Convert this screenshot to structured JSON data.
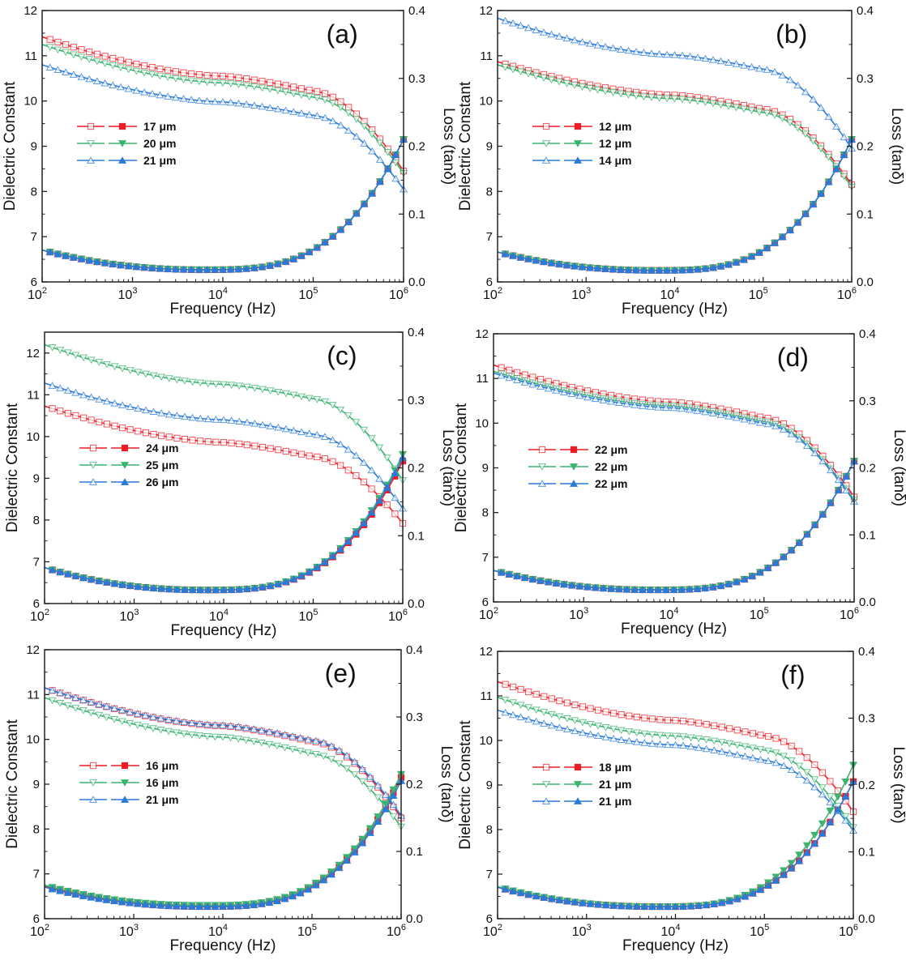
{
  "chart_data": [
    {
      "panel_label": "(a)",
      "type": "line",
      "xlabel": "Frequency (Hz)",
      "ylabel": "Dielectric Constant",
      "y2label": "Loss (tanδ)",
      "xscale": "log",
      "xlim": [
        100,
        1000000
      ],
      "ylim": [
        6,
        12
      ],
      "y2lim": [
        0,
        0.4
      ],
      "xticks": [
        "10^2",
        "10^3",
        "10^4",
        "10^5",
        "10^6"
      ],
      "yticks": [
        "6",
        "7",
        "8",
        "9",
        "10",
        "11",
        "12"
      ],
      "y2ticks": [
        "0.0",
        "0.1",
        "0.2",
        "0.3",
        "0.4"
      ],
      "legend": "center-left",
      "series": [
        {
          "name": "17 μm",
          "color": "#ee1c25",
          "marker": "square",
          "dielectric": {
            "start": 11.42,
            "mid": 10.55,
            "knee": 10.22,
            "end": 8.45
          },
          "loss": {
            "start": 0.047,
            "min": 0.018,
            "end": 0.21
          }
        },
        {
          "name": "20 μm",
          "color": "#3cb371",
          "marker": "triangle-down",
          "dielectric": {
            "start": 11.25,
            "mid": 10.4,
            "knee": 10.08,
            "end": 8.4
          },
          "loss": {
            "start": 0.047,
            "min": 0.018,
            "end": 0.21
          }
        },
        {
          "name": "21 μm",
          "color": "#2a7ad8",
          "marker": "triangle-up",
          "dielectric": {
            "start": 10.8,
            "mid": 9.98,
            "knee": 9.68,
            "end": 8.05
          },
          "loss": {
            "start": 0.047,
            "min": 0.018,
            "end": 0.21
          }
        }
      ]
    },
    {
      "panel_label": "(b)",
      "type": "line",
      "xlabel": "Frequency (Hz)",
      "ylabel": "Dielectric Constant",
      "y2label": "Loss (tanδ)",
      "xscale": "log",
      "xlim": [
        100,
        1000000
      ],
      "ylim": [
        6,
        12
      ],
      "y2lim": [
        0,
        0.4
      ],
      "xticks": [
        "10^2",
        "10^3",
        "10^4",
        "10^5",
        "10^6"
      ],
      "yticks": [
        "6",
        "7",
        "8",
        "9",
        "10",
        "11",
        "12"
      ],
      "y2ticks": [
        "0.0",
        "0.1",
        "0.2",
        "0.3",
        "0.4"
      ],
      "legend": "center-left",
      "series": [
        {
          "name": "12 μm",
          "color": "#ee1c25",
          "marker": "square",
          "dielectric": {
            "start": 10.87,
            "mid": 10.13,
            "knee": 9.82,
            "end": 8.15
          },
          "loss": {
            "start": 0.044,
            "min": 0.017,
            "end": 0.21
          }
        },
        {
          "name": "12 μm",
          "color": "#3cb371",
          "marker": "triangle-down",
          "dielectric": {
            "start": 10.8,
            "mid": 10.05,
            "knee": 9.74,
            "end": 8.1
          },
          "loss": {
            "start": 0.044,
            "min": 0.017,
            "end": 0.21
          }
        },
        {
          "name": "14 μm",
          "color": "#2a7ad8",
          "marker": "triangle-up",
          "dielectric": {
            "start": 11.83,
            "mid": 11.02,
            "knee": 10.7,
            "end": 8.95
          },
          "loss": {
            "start": 0.044,
            "min": 0.017,
            "end": 0.21
          }
        }
      ]
    },
    {
      "panel_label": "(c)",
      "type": "line",
      "xlabel": "Frequency (Hz)",
      "ylabel": "Dielectric Constant",
      "y2label": "Loss (tanδ)",
      "xscale": "log",
      "xlim": [
        100,
        1000000
      ],
      "ylim": [
        6,
        12.5
      ],
      "y2lim": [
        0,
        0.4
      ],
      "xticks": [
        "10^2",
        "10^3",
        "10^4",
        "10^5",
        "10^6"
      ],
      "yticks": [
        "6",
        "7",
        "8",
        "9",
        "10",
        "11",
        "12"
      ],
      "y2ticks": [
        "0.0",
        "0.1",
        "0.2",
        "0.3",
        "0.4"
      ],
      "legend": "center-left",
      "series": [
        {
          "name": "24 μm",
          "color": "#ee1c25",
          "marker": "square",
          "dielectric": {
            "start": 10.73,
            "mid": 9.86,
            "knee": 9.52,
            "end": 7.92
          },
          "loss": {
            "start": 0.053,
            "min": 0.02,
            "end": 0.21
          }
        },
        {
          "name": "25 μm",
          "color": "#3cb371",
          "marker": "triangle-down",
          "dielectric": {
            "start": 12.2,
            "mid": 11.25,
            "knee": 10.9,
            "end": 8.95
          },
          "loss": {
            "start": 0.053,
            "min": 0.02,
            "end": 0.22
          }
        },
        {
          "name": "26 μm",
          "color": "#2a7ad8",
          "marker": "triangle-up",
          "dielectric": {
            "start": 11.28,
            "mid": 10.4,
            "knee": 10.05,
            "end": 8.28
          },
          "loss": {
            "start": 0.053,
            "min": 0.02,
            "end": 0.215
          }
        }
      ]
    },
    {
      "panel_label": "(d)",
      "type": "line",
      "xlabel": "Frequency (Hz)",
      "ylabel": "Dielectric Constant",
      "y2label": "Loss (tanδ)",
      "xscale": "log",
      "xlim": [
        100,
        1000000
      ],
      "ylim": [
        6,
        12
      ],
      "y2lim": [
        0,
        0.4
      ],
      "xticks": [
        "10^2",
        "10^3",
        "10^4",
        "10^5",
        "10^6"
      ],
      "yticks": [
        "6",
        "7",
        "8",
        "9",
        "10",
        "11",
        "12"
      ],
      "y2ticks": [
        "0.0",
        "0.1",
        "0.2",
        "0.3",
        "0.4"
      ],
      "legend": "center-left",
      "series": [
        {
          "name": "22 μm",
          "color": "#ee1c25",
          "marker": "square",
          "dielectric": {
            "start": 11.3,
            "mid": 10.47,
            "knee": 10.12,
            "end": 8.35
          },
          "loss": {
            "start": 0.047,
            "min": 0.018,
            "end": 0.21
          }
        },
        {
          "name": "22 μm",
          "color": "#3cb371",
          "marker": "triangle-down",
          "dielectric": {
            "start": 11.16,
            "mid": 10.38,
            "knee": 10.03,
            "end": 8.28
          },
          "loss": {
            "start": 0.047,
            "min": 0.018,
            "end": 0.21
          }
        },
        {
          "name": "22 μm",
          "color": "#2a7ad8",
          "marker": "triangle-up",
          "dielectric": {
            "start": 11.12,
            "mid": 10.34,
            "knee": 9.99,
            "end": 8.25
          },
          "loss": {
            "start": 0.047,
            "min": 0.018,
            "end": 0.21
          }
        }
      ]
    },
    {
      "panel_label": "(e)",
      "type": "line",
      "xlabel": "Frequency (Hz)",
      "ylabel": "Dielectric Constant",
      "y2label": "Loss (tanδ)",
      "xscale": "log",
      "xlim": [
        100,
        1000000
      ],
      "ylim": [
        6,
        12
      ],
      "y2lim": [
        0,
        0.4
      ],
      "xticks": [
        "10^2",
        "10^3",
        "10^4",
        "10^5",
        "10^6"
      ],
      "yticks": [
        "6",
        "7",
        "8",
        "9",
        "10",
        "11",
        "12"
      ],
      "y2ticks": [
        "0.0",
        "0.1",
        "0.2",
        "0.3",
        "0.4"
      ],
      "legend": "center-left",
      "series": [
        {
          "name": "16 μm",
          "color": "#ee1c25",
          "marker": "square",
          "dielectric": {
            "start": 11.15,
            "mid": 10.3,
            "knee": 9.95,
            "end": 8.25
          },
          "loss": {
            "start": 0.048,
            "min": 0.018,
            "end": 0.21
          }
        },
        {
          "name": "16 μm",
          "color": "#3cb371",
          "marker": "triangle-down",
          "dielectric": {
            "start": 10.93,
            "mid": 10.05,
            "knee": 9.68,
            "end": 8.05
          },
          "loss": {
            "start": 0.05,
            "min": 0.02,
            "end": 0.215
          }
        },
        {
          "name": "21 μm",
          "color": "#2a7ad8",
          "marker": "triangle-up",
          "dielectric": {
            "start": 11.15,
            "mid": 10.32,
            "knee": 9.98,
            "end": 8.3
          },
          "loss": {
            "start": 0.047,
            "min": 0.018,
            "end": 0.205
          }
        }
      ]
    },
    {
      "panel_label": "(f)",
      "type": "line",
      "xlabel": "Frequency (Hz)",
      "ylabel": "Dielectric Constant",
      "y2label": "Loss (tanδ)",
      "xscale": "log",
      "xlim": [
        100,
        1000000
      ],
      "ylim": [
        6,
        12
      ],
      "y2lim": [
        0,
        0.4
      ],
      "xticks": [
        "10^2",
        "10^3",
        "10^4",
        "10^5",
        "10^6"
      ],
      "yticks": [
        "6",
        "7",
        "8",
        "9",
        "10",
        "11",
        "12"
      ],
      "y2ticks": [
        "0.0",
        "0.1",
        "0.2",
        "0.3",
        "0.4"
      ],
      "legend": "center-left",
      "series": [
        {
          "name": "18 μm",
          "color": "#ee1c25",
          "marker": "square",
          "dielectric": {
            "start": 11.32,
            "mid": 10.45,
            "knee": 10.1,
            "end": 8.4
          },
          "loss": {
            "start": 0.047,
            "min": 0.018,
            "end": 0.205
          }
        },
        {
          "name": "21 μm",
          "color": "#3cb371",
          "marker": "triangle-down",
          "dielectric": {
            "start": 10.97,
            "mid": 10.1,
            "knee": 9.78,
            "end": 8.05
          },
          "loss": {
            "start": 0.048,
            "min": 0.018,
            "end": 0.23
          }
        },
        {
          "name": "21 μm",
          "color": "#2a7ad8",
          "marker": "triangle-up",
          "dielectric": {
            "start": 10.68,
            "mid": 9.9,
            "knee": 9.55,
            "end": 7.98
          },
          "loss": {
            "start": 0.047,
            "min": 0.018,
            "end": 0.205
          }
        }
      ]
    }
  ]
}
